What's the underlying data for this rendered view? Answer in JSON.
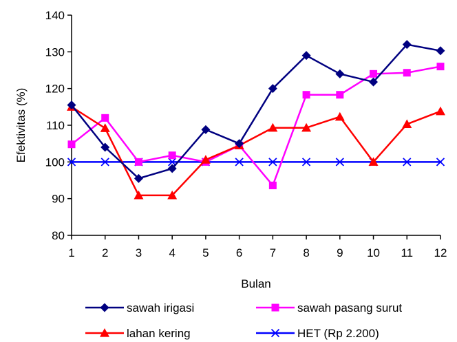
{
  "chart_data": {
    "type": "line",
    "title": "",
    "xlabel": "Bulan",
    "ylabel": "Efektivitas (%)",
    "ylim": [
      80,
      140
    ],
    "yticks": [
      80,
      90,
      100,
      110,
      120,
      130,
      140
    ],
    "x": [
      1,
      2,
      3,
      4,
      5,
      6,
      7,
      8,
      9,
      10,
      11,
      12
    ],
    "x_tick_labels": [
      "1",
      "2",
      "3",
      "4",
      "5",
      "6",
      "7",
      "8",
      "9",
      "10",
      "11",
      "12"
    ],
    "y_tick_labels": [
      "80",
      "90",
      "100",
      "110",
      "120",
      "130",
      "140"
    ],
    "grid": false,
    "legend_position": "bottom",
    "series": [
      {
        "name": "sawah irigasi",
        "color": "#000080",
        "marker": "diamond",
        "values": [
          115.5,
          104,
          95.5,
          98.2,
          108.8,
          105,
          120,
          129,
          124,
          121.8,
          132,
          130.3
        ]
      },
      {
        "name": "sawah pasang surut",
        "color": "#ff00ff",
        "marker": "square",
        "values": [
          104.8,
          112,
          100,
          101.8,
          100,
          104.5,
          93.6,
          118.3,
          118.3,
          124,
          124.3,
          126
        ]
      },
      {
        "name": "lahan kering",
        "color": "#ff0000",
        "marker": "triangle",
        "values": [
          115,
          109.2,
          90.9,
          90.9,
          100.6,
          104.5,
          109.3,
          109.3,
          112.3,
          100,
          110.3,
          113.8
        ]
      },
      {
        "name": "HET (Rp 2.200)",
        "color": "#0000ff",
        "marker": "x",
        "values": [
          100,
          100,
          100,
          100,
          100,
          100,
          100,
          100,
          100,
          100,
          100,
          100
        ]
      }
    ]
  }
}
